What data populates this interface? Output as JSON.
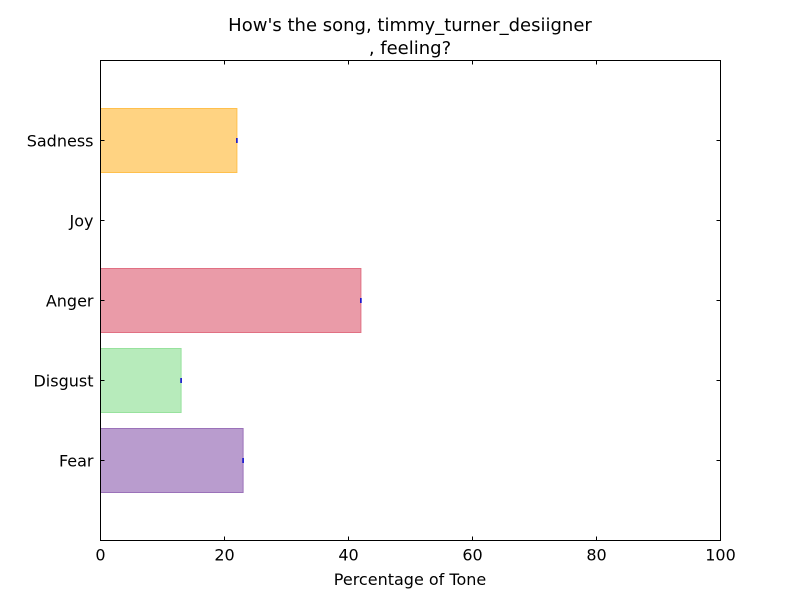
{
  "chart_data": {
    "type": "bar",
    "orientation": "horizontal",
    "title_line1": "How's the song, timmy_turner_desiigner",
    "title_line2": ", feeling?",
    "xlabel": "Percentage of Tone",
    "ylabel": "",
    "xlim": [
      0,
      100
    ],
    "x_ticks": [
      0,
      20,
      40,
      60,
      80,
      100
    ],
    "categories": [
      "Fear",
      "Disgust",
      "Anger",
      "Joy",
      "Sadness"
    ],
    "values": [
      23,
      13,
      42,
      0,
      22
    ],
    "colors": [
      "#9b72b9",
      "#98e29e",
      "#e17083",
      "#ffffff",
      "#ffc04d"
    ],
    "grid": false,
    "legend": "none"
  }
}
